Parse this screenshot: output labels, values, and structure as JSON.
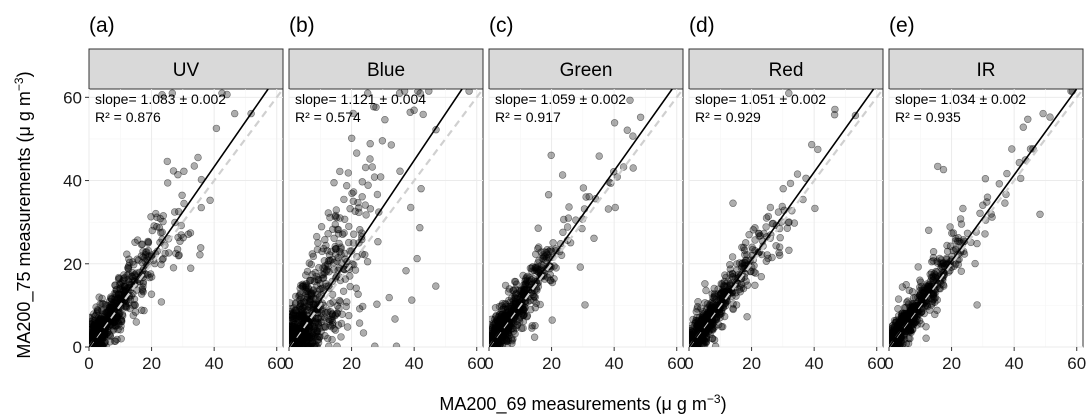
{
  "chart_data": {
    "type": "scatter",
    "xlabel": {
      "main": "MA200_69 measurements (",
      "mu": "μ",
      "unit": " g m",
      "exp": "−3",
      "close": ")"
    },
    "ylabel": {
      "main": "MA200_75 measurements (",
      "mu": "μ",
      "unit": " g m",
      "exp": "−3",
      "close": ")"
    },
    "xlim": [
      0,
      62
    ],
    "ylim": [
      0,
      62
    ],
    "x_ticks": [
      "0",
      "20",
      "40",
      "60"
    ],
    "y_ticks": [
      "0",
      "20",
      "40",
      "60"
    ],
    "tick_values": [
      0,
      20,
      40,
      60
    ],
    "grid": true,
    "reference_line": "1:1 dashed",
    "panels": [
      {
        "tag": "(a)",
        "label": "UV",
        "slope_text": "slope= 1.083 ± 0.002",
        "r2_text": "R² = 0.876",
        "slope": 1.083,
        "spread": 0.32,
        "outlier_rate": 0.06,
        "seed": 11
      },
      {
        "tag": "(b)",
        "label": "Blue",
        "slope_text": "slope= 1.121 ± 0.004",
        "r2_text": "R² = 0.574",
        "slope": 1.121,
        "spread": 0.75,
        "outlier_rate": 0.18,
        "seed": 23
      },
      {
        "tag": "(c)",
        "label": "Green",
        "slope_text": "slope= 1.059 ± 0.002",
        "r2_text": "R² = 0.917",
        "slope": 1.059,
        "spread": 0.26,
        "outlier_rate": 0.04,
        "seed": 37
      },
      {
        "tag": "(d)",
        "label": "Red",
        "slope_text": "slope= 1.051 ± 0.002",
        "r2_text": "R² = 0.929",
        "slope": 1.051,
        "spread": 0.24,
        "outlier_rate": 0.035,
        "seed": 41
      },
      {
        "tag": "(e)",
        "label": "IR",
        "slope_text": "slope= 1.034 ± 0.002",
        "r2_text": "R² = 0.935",
        "slope": 1.034,
        "spread": 0.23,
        "outlier_rate": 0.03,
        "seed": 53
      }
    ]
  }
}
